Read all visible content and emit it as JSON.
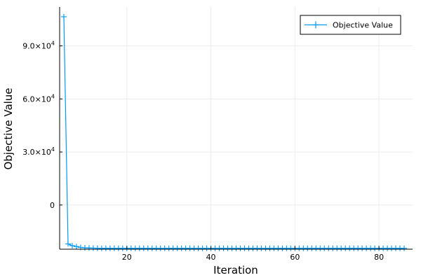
{
  "chart_data": {
    "type": "line",
    "xlabel": "Iteration",
    "ylabel": "Objective Value",
    "xlim": [
      4,
      88
    ],
    "ylim": [
      -25000,
      112000
    ],
    "x_ticks": [
      20,
      40,
      60,
      80
    ],
    "x_tick_labels": [
      "20",
      "40",
      "60",
      "80"
    ],
    "y_ticks": [
      0,
      30000,
      60000,
      90000
    ],
    "y_tick_labels": [
      {
        "mantissa": "0",
        "exponent": ""
      },
      {
        "mantissa": "3.0×10",
        "exponent": "4"
      },
      {
        "mantissa": "6.0×10",
        "exponent": "4"
      },
      {
        "mantissa": "9.0×10",
        "exponent": "4"
      }
    ],
    "grid": true,
    "legend_position": "top-right",
    "marker": "cross",
    "colors": {
      "series": "#009AFA",
      "grid": "#ececec",
      "axis": "#000000"
    },
    "series": [
      {
        "name": "Objective Value",
        "x": [
          5,
          6,
          7,
          8,
          9,
          10,
          11,
          12,
          13,
          14,
          15,
          16,
          17,
          18,
          19,
          20,
          21,
          22,
          23,
          24,
          25,
          26,
          27,
          28,
          29,
          30,
          31,
          32,
          33,
          34,
          35,
          36,
          37,
          38,
          39,
          40,
          41,
          42,
          43,
          44,
          45,
          46,
          47,
          48,
          49,
          50,
          51,
          52,
          53,
          54,
          55,
          56,
          57,
          58,
          59,
          60,
          61,
          62,
          63,
          64,
          65,
          66,
          67,
          68,
          69,
          70,
          71,
          72,
          73,
          74,
          75,
          76,
          77,
          78,
          79,
          80,
          81,
          82,
          83,
          84,
          85,
          86
        ],
        "y": [
          106500,
          -22000,
          -23000,
          -23500,
          -24000,
          -24200,
          -24300,
          -24400,
          -24450,
          -24500,
          -24500,
          -24500,
          -24500,
          -24500,
          -24500,
          -24500,
          -24500,
          -24500,
          -24500,
          -24500,
          -24500,
          -24500,
          -24500,
          -24500,
          -24500,
          -24500,
          -24500,
          -24500,
          -24500,
          -24500,
          -24500,
          -24500,
          -24500,
          -24500,
          -24500,
          -24500,
          -24500,
          -24500,
          -24500,
          -24500,
          -24500,
          -24500,
          -24500,
          -24500,
          -24500,
          -24500,
          -24500,
          -24500,
          -24500,
          -24500,
          -24500,
          -24500,
          -24500,
          -24500,
          -24500,
          -24500,
          -24500,
          -24500,
          -24500,
          -24500,
          -24500,
          -24500,
          -24500,
          -24500,
          -24500,
          -24500,
          -24500,
          -24500,
          -24500,
          -24500,
          -24500,
          -24500,
          -24500,
          -24500,
          -24500,
          -24500,
          -24500,
          -24500,
          -24500,
          -24500,
          -24500,
          -24500
        ]
      }
    ]
  }
}
